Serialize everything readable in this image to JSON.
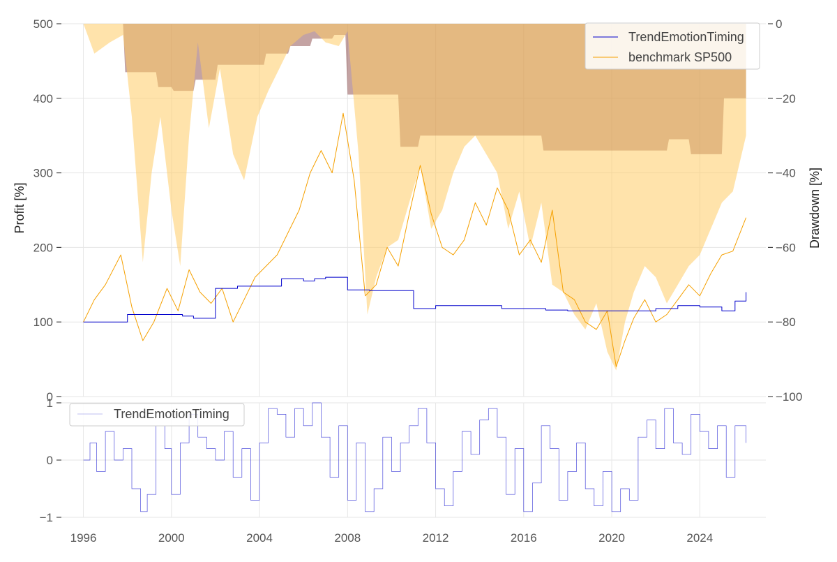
{
  "chart_data": [
    {
      "type": "line",
      "panel": "main",
      "ylabel_left": "Profit [%]",
      "ylabel_right": "Drawdown [%]",
      "ylim_left": [
        0,
        500
      ],
      "ylim_right": [
        -100,
        0
      ],
      "yticks_left": [
        0,
        100,
        200,
        300,
        400,
        500
      ],
      "yticks_right": [
        0,
        -20,
        -40,
        -60,
        -80,
        -100
      ],
      "yticklabels_right": [
        "0",
        "−20",
        "−40",
        "−60",
        "−80",
        "−100"
      ],
      "xlim": [
        1995.0,
        2027.0
      ],
      "grid": true,
      "legend_position": "top-right",
      "series": [
        {
          "name": "TrendEmotionTiming",
          "color": "#0000cc",
          "x": [
            1996.0,
            1997.0,
            1998.0,
            1999.0,
            2000.0,
            2000.5,
            2001.0,
            2002.0,
            2003.0,
            2004.0,
            2004.5,
            2005.0,
            2006.0,
            2006.5,
            2007.0,
            2008.0,
            2009.0,
            2010.0,
            2010.5,
            2011.0,
            2012.0,
            2013.0,
            2014.0,
            2015.0,
            2016.0,
            2017.0,
            2018.0,
            2019.0,
            2020.0,
            2021.0,
            2022.0,
            2023.0,
            2024.0,
            2025.0,
            2025.6,
            2026.1
          ],
          "values": [
            100,
            100,
            110,
            110,
            110,
            108,
            105,
            145,
            148,
            148,
            148,
            158,
            155,
            158,
            160,
            143,
            142,
            142,
            142,
            118,
            122,
            122,
            122,
            118,
            118,
            116,
            115,
            115,
            115,
            115,
            118,
            122,
            120,
            115,
            128,
            140
          ]
        },
        {
          "name": "benchmark SP500",
          "color": "#f5a000",
          "x": [
            1996.0,
            1996.5,
            1997.0,
            1997.7,
            1998.2,
            1998.7,
            1999.2,
            1999.8,
            2000.3,
            2000.8,
            2001.3,
            2001.8,
            2002.3,
            2002.8,
            2003.3,
            2003.8,
            2004.3,
            2004.8,
            2005.3,
            2005.8,
            2006.3,
            2006.8,
            2007.3,
            2007.8,
            2008.3,
            2008.8,
            2009.3,
            2009.8,
            2010.3,
            2010.8,
            2011.3,
            2011.8,
            2012.3,
            2012.8,
            2013.3,
            2013.8,
            2014.3,
            2014.8,
            2015.3,
            2015.8,
            2016.3,
            2016.8,
            2017.3,
            2017.8,
            2018.3,
            2018.8,
            2019.3,
            2019.8,
            2020.2,
            2020.6,
            2021.0,
            2021.5,
            2022.0,
            2022.5,
            2023.0,
            2023.5,
            2024.0,
            2024.5,
            2025.0,
            2025.5,
            2026.1
          ],
          "values": [
            100,
            130,
            150,
            190,
            120,
            75,
            100,
            145,
            115,
            170,
            140,
            125,
            145,
            100,
            130,
            160,
            175,
            190,
            220,
            250,
            300,
            330,
            300,
            380,
            290,
            135,
            150,
            200,
            175,
            245,
            310,
            245,
            200,
            190,
            210,
            260,
            230,
            280,
            250,
            190,
            210,
            180,
            250,
            140,
            130,
            100,
            90,
            115,
            40,
            75,
            105,
            130,
            100,
            110,
            130,
            150,
            135,
            165,
            190,
            195,
            240
          ]
        }
      ],
      "drawdown": [
        {
          "name": "TrendEmotionTiming",
          "color": "#5b0000",
          "x": [
            1996.0,
            1997.8,
            1997.9,
            1999.3,
            1999.4,
            2000.0,
            2000.1,
            2001.0,
            2001.1,
            2002.0,
            2002.1,
            2004.2,
            2004.3,
            2005.3,
            2005.4,
            2006.3,
            2006.4,
            2007.3,
            2007.4,
            2007.9,
            2008.0,
            2010.3,
            2010.4,
            2011.2,
            2011.3,
            2016.8,
            2016.9,
            2022.5,
            2022.6,
            2023.5,
            2023.6,
            2025.0,
            2025.1,
            2026.1
          ],
          "values": [
            0,
            0,
            -13,
            -13,
            -17,
            -17,
            -18,
            -18,
            -15,
            -15,
            -11,
            -11,
            -8,
            -8,
            -6,
            -6,
            -4,
            -4,
            -3,
            -3,
            -19,
            -19,
            -33,
            -33,
            -30,
            -30,
            -34,
            -34,
            -31,
            -31,
            -35,
            -35,
            -20,
            -20
          ]
        },
        {
          "name": "benchmark SP500",
          "color": "#ffcc66",
          "x": [
            1996.0,
            1996.5,
            1997.2,
            1997.8,
            1998.2,
            1998.7,
            1999.1,
            1999.5,
            2000.0,
            2000.4,
            2000.8,
            2001.2,
            2001.7,
            2002.2,
            2002.8,
            2003.3,
            2003.9,
            2004.4,
            2004.9,
            2005.4,
            2006.0,
            2006.5,
            2007.0,
            2007.6,
            2008.0,
            2008.5,
            2008.9,
            2009.3,
            2009.8,
            2010.3,
            2010.8,
            2011.3,
            2011.8,
            2012.3,
            2012.8,
            2013.3,
            2013.8,
            2014.3,
            2014.8,
            2015.3,
            2015.8,
            2016.3,
            2016.8,
            2017.3,
            2017.8,
            2018.3,
            2018.8,
            2019.3,
            2019.8,
            2020.2,
            2020.6,
            2021.0,
            2021.5,
            2022.0,
            2022.5,
            2023.0,
            2023.5,
            2024.0,
            2024.5,
            2025.0,
            2025.5,
            2026.1
          ],
          "values": [
            0,
            -8,
            -5,
            -3,
            -25,
            -64,
            -40,
            -25,
            -50,
            -65,
            -30,
            -5,
            -28,
            -12,
            -35,
            -42,
            -25,
            -18,
            -12,
            -6,
            -3,
            -2,
            -5,
            -6,
            -2,
            -35,
            -78,
            -68,
            -60,
            -58,
            -48,
            -38,
            -55,
            -50,
            -40,
            -33,
            -30,
            -35,
            -40,
            -55,
            -45,
            -60,
            -48,
            -70,
            -72,
            -78,
            -82,
            -75,
            -88,
            -93,
            -80,
            -72,
            -65,
            -68,
            -75,
            -70,
            -65,
            -62,
            -55,
            -48,
            -45,
            -30
          ]
        }
      ]
    },
    {
      "type": "line",
      "panel": "signal",
      "ylim": [
        -1,
        1
      ],
      "yticks": [
        -1,
        0,
        1
      ],
      "yticklabels": [
        "−1",
        "0",
        "1"
      ],
      "xticks": [
        1996,
        2000,
        2004,
        2008,
        2012,
        2016,
        2020,
        2024
      ],
      "xticklabels": [
        "1996",
        "2000",
        "2004",
        "2008",
        "2012",
        "2016",
        "2020",
        "2024"
      ],
      "xlim": [
        1995.0,
        2027.0
      ],
      "grid": true,
      "legend_position": "top-left",
      "series": [
        {
          "name": "TrendEmotionTiming",
          "color": "#0000cc",
          "x": [
            1996.0,
            1996.3,
            1996.6,
            1997.0,
            1997.4,
            1997.8,
            1998.2,
            1998.6,
            1998.9,
            1999.3,
            1999.7,
            2000.0,
            2000.4,
            2000.8,
            2001.2,
            2001.6,
            2002.0,
            2002.4,
            2002.8,
            2003.2,
            2003.6,
            2004.0,
            2004.4,
            2004.8,
            2005.2,
            2005.6,
            2006.0,
            2006.4,
            2006.8,
            2007.2,
            2007.6,
            2008.0,
            2008.4,
            2008.8,
            2009.2,
            2009.6,
            2010.0,
            2010.4,
            2010.8,
            2011.2,
            2011.6,
            2012.0,
            2012.4,
            2012.8,
            2013.2,
            2013.6,
            2014.0,
            2014.4,
            2014.8,
            2015.2,
            2015.6,
            2016.0,
            2016.4,
            2016.8,
            2017.2,
            2017.6,
            2018.0,
            2018.4,
            2018.8,
            2019.2,
            2019.6,
            2020.0,
            2020.4,
            2020.8,
            2021.2,
            2021.6,
            2022.0,
            2022.4,
            2022.8,
            2023.2,
            2023.6,
            2024.0,
            2024.4,
            2024.8,
            2025.2,
            2025.6,
            2026.1
          ],
          "values": [
            0,
            0.3,
            -0.2,
            0.5,
            0,
            0.2,
            -0.5,
            -0.9,
            -0.6,
            0.6,
            0.2,
            -0.6,
            0.3,
            0.8,
            0.4,
            0.2,
            0,
            0.5,
            -0.3,
            0.2,
            -0.7,
            0.3,
            0.9,
            0.8,
            0.4,
            0.9,
            0.6,
            1,
            0.4,
            -0.3,
            0.6,
            -0.7,
            0.3,
            -0.9,
            -0.5,
            0.4,
            -0.2,
            0.3,
            0.6,
            0.9,
            0.3,
            -0.5,
            -0.8,
            -0.2,
            0.5,
            0.1,
            0.7,
            0.9,
            0.4,
            -0.6,
            0.2,
            -0.9,
            -0.4,
            0.6,
            0.2,
            -0.7,
            -0.2,
            0.3,
            -0.5,
            -0.8,
            -0.2,
            -0.9,
            -0.5,
            -0.7,
            0.4,
            0.7,
            0.2,
            0.9,
            0.3,
            0.1,
            0.8,
            0.5,
            0.2,
            0.6,
            -0.3,
            0.6,
            0.3
          ]
        }
      ]
    }
  ]
}
